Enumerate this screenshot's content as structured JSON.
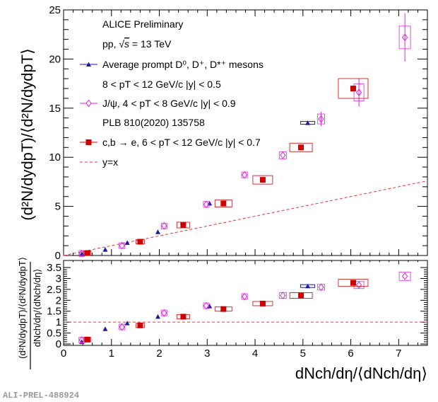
{
  "chart_data": [
    {
      "type": "scatter",
      "panel": "top",
      "title": "",
      "xlabel": "dN_ch/dη/⟨dN_ch/dη⟩",
      "ylabel": "(d²N/dydp_T)/⟨d²N/dydp_T⟩",
      "xlim": [
        0,
        7.6
      ],
      "ylim": [
        0,
        25
      ],
      "y_ticks": [
        "0",
        "5",
        "10",
        "15",
        "20",
        "25"
      ],
      "annotations": [
        "ALICE Preliminary",
        "pp, √s = 13 TeV"
      ],
      "legend_position": "top-left",
      "series": [
        {
          "name": "Average prompt D0, D+, D*+ mesons",
          "label": "8 < p_T < 12 GeV/c |y| < 0.5",
          "color": "#1a1a9e",
          "marker": "triangle",
          "x": [
            0.38,
            0.87,
            1.33,
            1.97,
            3.05,
            5.1
          ],
          "y": [
            0.15,
            0.6,
            1.3,
            2.4,
            5.3,
            13.5
          ]
        },
        {
          "name": "J/ψ, 4 < p_T < 8 GeV/c |y| < 0.9",
          "label": "PLB 810(2020) 135758",
          "color": "#e020e0",
          "marker": "open-diamond",
          "x": [
            0.38,
            1.22,
            2.1,
            2.98,
            3.78,
            4.58,
            5.38,
            6.17,
            7.13
          ],
          "y": [
            0.2,
            1.0,
            3.0,
            5.2,
            8.2,
            10.2,
            13.9,
            16.6,
            22.2
          ]
        },
        {
          "name": "c,b → e, 6 < p_T < 12 GeV/c |y| < 0.7",
          "label": "",
          "color": "#cc0000",
          "marker": "filled-square",
          "x": [
            0.5,
            1.6,
            2.5,
            3.34,
            4.16,
            4.96,
            6.05
          ],
          "y": [
            0.25,
            1.4,
            3.1,
            5.3,
            7.7,
            11.0,
            17.0
          ]
        },
        {
          "name": "y=x",
          "color": "#ee3333",
          "marker": "dashed-line",
          "x": [
            0,
            7.6
          ],
          "y": [
            0,
            7.6
          ]
        }
      ]
    },
    {
      "type": "scatter",
      "panel": "bottom",
      "xlabel": "dN_ch/dη/⟨dN_ch/dη⟩",
      "ylabel": "((d²N/dydp_T)/⟨d²N/dydp_T⟩) / (dN_ch/dη/⟨dN_ch/dη⟩)",
      "xlim": [
        0,
        7.6
      ],
      "ylim": [
        0,
        3.8
      ],
      "x_ticks": [
        "0",
        "1",
        "2",
        "3",
        "4",
        "5",
        "6",
        "7"
      ],
      "y_ticks": [
        "0",
        "0.5",
        "1",
        "1.5",
        "2",
        "2.5",
        "3",
        "3.5"
      ],
      "series": [
        {
          "name": "Average prompt D0, D+, D*+ mesons",
          "color": "#1a1a9e",
          "marker": "triangle",
          "x": [
            0.38,
            0.87,
            1.33,
            1.97,
            3.05,
            5.1
          ],
          "y": [
            0.1,
            0.69,
            0.95,
            1.25,
            1.73,
            2.65
          ]
        },
        {
          "name": "J/ψ",
          "color": "#e020e0",
          "marker": "open-diamond",
          "x": [
            0.38,
            1.22,
            2.1,
            2.98,
            3.78,
            4.58,
            5.38,
            6.17,
            7.13
          ],
          "y": [
            0.18,
            0.78,
            1.42,
            1.75,
            2.17,
            2.22,
            2.6,
            2.7,
            3.1
          ]
        },
        {
          "name": "c,b → e",
          "color": "#cc0000",
          "marker": "filled-square",
          "x": [
            0.5,
            1.6,
            2.5,
            3.34,
            4.16,
            4.96,
            6.05
          ],
          "y": [
            0.2,
            0.85,
            1.25,
            1.6,
            1.85,
            2.22,
            2.8
          ]
        },
        {
          "name": "y=1",
          "color": "#ee3333",
          "marker": "dashed-line",
          "x": [
            0,
            7.6
          ],
          "y": [
            1,
            1
          ]
        }
      ]
    }
  ],
  "legend": {
    "line1": "ALICE Preliminary",
    "line2_prefix": "pp, ",
    "line2_s": "s",
    "line2_suffix": " = 13 TeV",
    "d_meson": "Average prompt D⁰, D⁺, D*⁺ mesons",
    "d_meson_sub": "8 < pT < 12 GeV/c |y| < 0.5",
    "jpsi": "J/ψ, 4 < pT < 8 GeV/c |y| < 0.9",
    "jpsi_ref": "PLB 810(2020) 135758",
    "hfe": "c,b → e, 6 < pT < 12 GeV/c |y| < 0.7",
    "yx": "y=x"
  },
  "axis_titles": {
    "x": "dNch/dη/⟨dNch/dη⟩",
    "y_top": "(d²N/dydpT)/⟨d²N/dydpT⟩",
    "y_bottom_num": "(d²N/dydpT)/⟨d²N/dydpT⟩",
    "y_bottom_den": "dNch/dη/⟨dNch/dη⟩"
  },
  "footer_tag": "ALI-PREL-488924"
}
